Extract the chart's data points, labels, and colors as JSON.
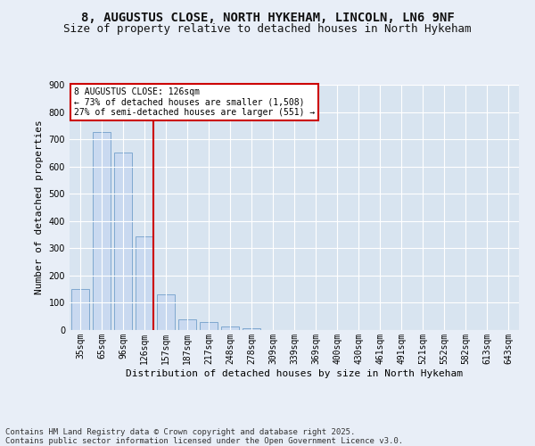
{
  "title1": "8, AUGUSTUS CLOSE, NORTH HYKEHAM, LINCOLN, LN6 9NF",
  "title2": "Size of property relative to detached houses in North Hykeham",
  "xlabel": "Distribution of detached houses by size in North Hykeham",
  "ylabel": "Number of detached properties",
  "categories": [
    "35sqm",
    "65sqm",
    "96sqm",
    "126sqm",
    "157sqm",
    "187sqm",
    "217sqm",
    "248sqm",
    "278sqm",
    "309sqm",
    "339sqm",
    "369sqm",
    "400sqm",
    "430sqm",
    "461sqm",
    "491sqm",
    "521sqm",
    "552sqm",
    "582sqm",
    "613sqm",
    "643sqm"
  ],
  "values": [
    150,
    725,
    650,
    345,
    132,
    40,
    30,
    12,
    8,
    0,
    0,
    0,
    0,
    0,
    0,
    0,
    0,
    0,
    0,
    0,
    0
  ],
  "bar_color": "#c9d9f0",
  "bar_edge_color": "#7fa8d0",
  "vline_idx": 3,
  "vline_color": "#cc0000",
  "annotation_text": "8 AUGUSTUS CLOSE: 126sqm\n← 73% of detached houses are smaller (1,508)\n27% of semi-detached houses are larger (551) →",
  "annotation_box_color": "#ffffff",
  "annotation_box_edge": "#cc0000",
  "bg_color": "#e8eef7",
  "plot_bg_color": "#d8e4f0",
  "grid_color": "#ffffff",
  "ylim": [
    0,
    900
  ],
  "yticks": [
    0,
    100,
    200,
    300,
    400,
    500,
    600,
    700,
    800,
    900
  ],
  "footer1": "Contains HM Land Registry data © Crown copyright and database right 2025.",
  "footer2": "Contains public sector information licensed under the Open Government Licence v3.0.",
  "title_fontsize": 10,
  "subtitle_fontsize": 9,
  "axis_label_fontsize": 8,
  "tick_fontsize": 7,
  "footer_fontsize": 6.5,
  "annot_fontsize": 7
}
